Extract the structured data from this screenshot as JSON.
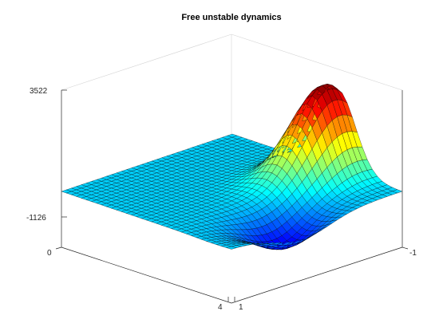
{
  "chart_data": {
    "type": "surface",
    "title": "Free unstable dynamics",
    "axes": {
      "x": {
        "ticks": [
          1,
          4
        ]
      },
      "y": {
        "ticks": [
          0,
          -1
        ]
      },
      "z": {
        "ticks": [
          -1126,
          3522
        ],
        "lim": [
          -1126,
          3522
        ]
      }
    },
    "grid": false,
    "colormap": "jet",
    "edgecolor": "#000000",
    "surface": {
      "peak_value": 3300,
      "trough_value": -1100,
      "description_of_shape": "flat plateau at the far side rising to a single red peak near the right corner, with a blue trough in front of it"
    }
  },
  "tick_labels": {
    "z_top": "3522",
    "z_bottom": "-1126",
    "y_left": "0",
    "y_right": "-1",
    "x_left": "4",
    "x_right": "1"
  }
}
